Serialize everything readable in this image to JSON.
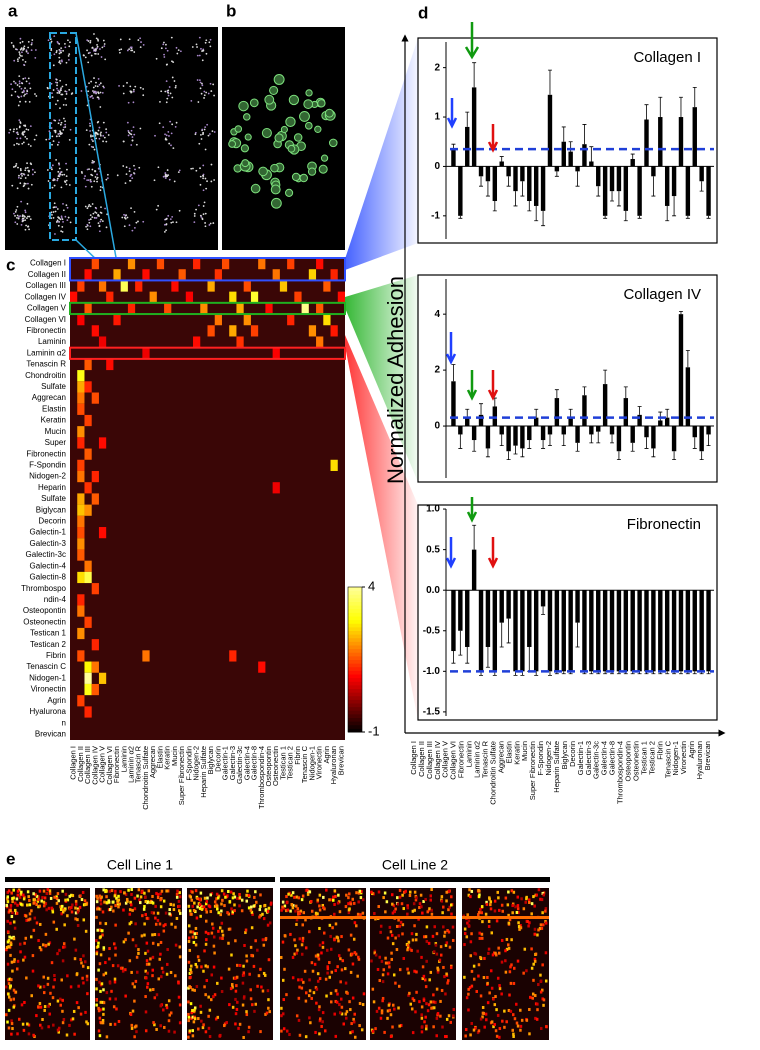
{
  "figure": {
    "panel_labels": [
      "a",
      "b",
      "c",
      "d",
      "e"
    ],
    "adhesion_label": "Normalized Adhesion",
    "cell_lines": [
      "Cell Line 1",
      "Cell Line 2"
    ]
  },
  "chart_data": [
    {
      "type": "heatmap",
      "row_labels": [
        "Collagen I",
        "Collagen II",
        "Collagen III",
        "Collagen IV",
        "Collagen V",
        "Collagen VI",
        "Fibronectin",
        "Laminin",
        "Laminin α2",
        "Tenascin R",
        "Chondroitin",
        "Sulfate",
        "Aggrecan",
        "Elastin",
        "Keratin",
        "Mucin",
        "Super",
        "Fibronectin",
        "F-Spondin",
        "Nidogen-2",
        "Heparin",
        "Sulfate",
        "Biglycan",
        "Decorin",
        "Galectin-1",
        "Galectin-3",
        "Galectin-3c",
        "Galectin-4",
        "Galectin-8",
        "Thrombospo",
        "ndin-4",
        "Osteopontin",
        "Osteonectin",
        "Testican 1",
        "Testican 2",
        "Fibrin",
        "Tenascin C",
        "Nidogen-1",
        "Vironectin",
        "Agrin",
        "Hyalurona",
        "n",
        "Brevican"
      ],
      "categories": [
        "Collagen I",
        "Collagen II",
        "Collagen III",
        "Collagen IV",
        "Collagen V",
        "Collagen VI",
        "Fibronectin",
        "Laminin",
        "Laminin α2",
        "Tenascin R",
        "Chondroitin Sulfate",
        "Aggrecan",
        "Elastin",
        "Keratin",
        "Mucin",
        "Super Fibronectin",
        "F-Spondin",
        "Nidogen-2",
        "Heparin Sulfate",
        "Biglycan",
        "Decorin",
        "Galectin-1",
        "Galectin-3",
        "Galectin-3c",
        "Galectin-4",
        "Galectin-8",
        "Thrombospondin-4",
        "Osteopontin",
        "Osteonectin",
        "Testican 1",
        "Testican 2",
        "Fibrin",
        "Tenascin C",
        "Nidogen-1",
        "Vironectin",
        "Agrin",
        "Hyaluronan",
        "Brevican"
      ],
      "clim": [
        -1,
        4
      ],
      "cticks": [
        4,
        -1
      ],
      "cells": [
        [
          0,
          3,
          1.5
        ],
        [
          0,
          8,
          2.0
        ],
        [
          0,
          12,
          1.5
        ],
        [
          0,
          17,
          1.2
        ],
        [
          0,
          21,
          1.5
        ],
        [
          0,
          26,
          1.8
        ],
        [
          0,
          30,
          1.4
        ],
        [
          0,
          34,
          1.0
        ],
        [
          1,
          2,
          1.0
        ],
        [
          1,
          6,
          2.2
        ],
        [
          1,
          10,
          1.0
        ],
        [
          1,
          15,
          1.6
        ],
        [
          1,
          20,
          1.3
        ],
        [
          1,
          28,
          1.8
        ],
        [
          1,
          33,
          2.5
        ],
        [
          1,
          36,
          1.2
        ],
        [
          2,
          1,
          1.4
        ],
        [
          2,
          4,
          1.8
        ],
        [
          2,
          7,
          3.5
        ],
        [
          2,
          9,
          1.2
        ],
        [
          2,
          14,
          1.0
        ],
        [
          2,
          19,
          2.2
        ],
        [
          2,
          24,
          1.5
        ],
        [
          2,
          29,
          2.4
        ],
        [
          2,
          35,
          1.6
        ],
        [
          3,
          0,
          1.0
        ],
        [
          3,
          5,
          1.2
        ],
        [
          3,
          11,
          2.0
        ],
        [
          3,
          16,
          0.9
        ],
        [
          3,
          22,
          2.6
        ],
        [
          3,
          25,
          3.2
        ],
        [
          3,
          31,
          1.4
        ],
        [
          3,
          37,
          1.0
        ],
        [
          4,
          2,
          1.6
        ],
        [
          4,
          8,
          1.2
        ],
        [
          4,
          13,
          1.5
        ],
        [
          4,
          18,
          2.0
        ],
        [
          4,
          23,
          2.2
        ],
        [
          4,
          27,
          1.0
        ],
        [
          4,
          32,
          3.9
        ],
        [
          4,
          34,
          1.6
        ],
        [
          5,
          1,
          0.9
        ],
        [
          5,
          6,
          1.1
        ],
        [
          5,
          20,
          1.8
        ],
        [
          5,
          24,
          2.0
        ],
        [
          5,
          30,
          1.2
        ],
        [
          5,
          35,
          2.6
        ],
        [
          6,
          3,
          1.0
        ],
        [
          6,
          19,
          1.5
        ],
        [
          6,
          22,
          2.2
        ],
        [
          6,
          25,
          1.4
        ],
        [
          6,
          33,
          2.0
        ],
        [
          6,
          36,
          1.1
        ],
        [
          7,
          4,
          0.8
        ],
        [
          7,
          17,
          1.0
        ],
        [
          7,
          23,
          1.3
        ],
        [
          7,
          34,
          1.8
        ],
        [
          8,
          10,
          0.8
        ],
        [
          8,
          28,
          0.9
        ],
        [
          9,
          2,
          1.6
        ],
        [
          9,
          5,
          1.0
        ],
        [
          10,
          1,
          3.0
        ],
        [
          11,
          1,
          2.2
        ],
        [
          11,
          2,
          1.2
        ],
        [
          12,
          1,
          1.8
        ],
        [
          12,
          3,
          1.5
        ],
        [
          13,
          1,
          1.5
        ],
        [
          14,
          2,
          1.4
        ],
        [
          15,
          1,
          2.0
        ],
        [
          16,
          1,
          1.2
        ],
        [
          16,
          4,
          1.0
        ],
        [
          17,
          2,
          1.6
        ],
        [
          18,
          1,
          1.4
        ],
        [
          19,
          1,
          1.8
        ],
        [
          19,
          3,
          1.2
        ],
        [
          20,
          2,
          1.3
        ],
        [
          21,
          1,
          2.2
        ],
        [
          21,
          3,
          1.6
        ],
        [
          22,
          1,
          2.4
        ],
        [
          22,
          2,
          2.0
        ],
        [
          23,
          1,
          1.8
        ],
        [
          24,
          1,
          1.5
        ],
        [
          24,
          4,
          1.0
        ],
        [
          25,
          1,
          2.0
        ],
        [
          26,
          1,
          1.6
        ],
        [
          27,
          2,
          1.8
        ],
        [
          28,
          1,
          2.6
        ],
        [
          28,
          2,
          3.4
        ],
        [
          29,
          3,
          1.4
        ],
        [
          30,
          1,
          1.2
        ],
        [
          31,
          1,
          1.8
        ],
        [
          32,
          2,
          1.4
        ],
        [
          33,
          1,
          2.0
        ],
        [
          34,
          3,
          1.2
        ],
        [
          35,
          1,
          1.5
        ],
        [
          36,
          2,
          2.8
        ],
        [
          36,
          3,
          1.8
        ],
        [
          37,
          2,
          4.0
        ],
        [
          37,
          4,
          2.4
        ],
        [
          38,
          2,
          3.0
        ],
        [
          38,
          3,
          1.6
        ],
        [
          39,
          1,
          1.4
        ],
        [
          40,
          2,
          1.2
        ],
        [
          18,
          36,
          2.6
        ],
        [
          35,
          10,
          1.8
        ],
        [
          35,
          22,
          1.2
        ],
        [
          36,
          26,
          1.0
        ],
        [
          20,
          28,
          0.8
        ]
      ]
    },
    {
      "type": "bar",
      "title": "Collagen I",
      "title_color": "#1a1ad0",
      "color": "#000000",
      "categories": [
        "Collagen I",
        "Collagen II",
        "Collagen III",
        "Collagen IV",
        "Collagen V",
        "Collagen VI",
        "Fibronectin",
        "Laminin",
        "Laminin α2",
        "Tenascin R",
        "Chondroitin Sulfate",
        "Aggrecan",
        "Elastin",
        "Keratin",
        "Mucin",
        "Super Fibronectin",
        "F-Spondin",
        "Nidogen-2",
        "Heparin Sulfate",
        "Biglycan",
        "Decorin",
        "Galectin-1",
        "Galectin-3",
        "Galectin-3c",
        "Galectin-4",
        "Galectin-8",
        "Thrombospondin-4",
        "Osteopontin",
        "Osteonectin",
        "Testican 1",
        "Testican 2",
        "Fibrin",
        "Tenascin C",
        "Nidogen-1",
        "Vironectin",
        "Agrin",
        "Hyaluronan",
        "Brevican"
      ],
      "values": [
        0.35,
        -1.0,
        0.8,
        1.6,
        -0.2,
        -0.3,
        -0.7,
        0.1,
        -0.2,
        -0.5,
        -0.3,
        -0.7,
        -0.8,
        -0.9,
        1.45,
        -0.1,
        0.5,
        0.3,
        -0.1,
        0.45,
        0.1,
        -0.4,
        -1.0,
        -0.5,
        -0.5,
        -0.9,
        0.15,
        -1.0,
        0.95,
        -0.2,
        1.0,
        -0.8,
        -0.6,
        1.0,
        -1.0,
        1.2,
        -0.3,
        -1.0
      ],
      "errors": [
        0.1,
        0.05,
        0.3,
        0.5,
        0.2,
        0.3,
        0.2,
        0.1,
        0.2,
        0.3,
        0.3,
        0.2,
        0.3,
        0.3,
        0.5,
        0.1,
        0.3,
        0.2,
        0.3,
        0.4,
        0.3,
        0.2,
        0.05,
        0.2,
        0.3,
        0.2,
        0.1,
        0.05,
        0.3,
        0.4,
        0.4,
        0.3,
        0.4,
        0.4,
        0.05,
        0.4,
        0.2,
        0.05
      ],
      "reference": 0.35,
      "reference_color": "#1f3fd8",
      "ylim": [
        -1.55,
        2.6
      ],
      "yticks": [
        2,
        1,
        0,
        -1
      ]
    },
    {
      "type": "bar",
      "title": "Collagen IV",
      "title_color": "#1a9a1a",
      "color": "#000000",
      "values": [
        1.6,
        -0.3,
        0.3,
        -0.5,
        0.4,
        -0.8,
        0.7,
        -0.3,
        -0.9,
        -0.7,
        -0.8,
        -0.5,
        0.3,
        -0.5,
        -0.3,
        1.0,
        -0.3,
        0.3,
        -0.6,
        1.1,
        -0.3,
        -0.2,
        1.5,
        -0.3,
        -0.9,
        1.0,
        -0.6,
        0.4,
        -0.4,
        -0.8,
        0.2,
        0.3,
        -0.9,
        4.0,
        2.1,
        -0.4,
        -0.9,
        -0.3
      ],
      "errors": [
        0.6,
        0.5,
        0.3,
        0.4,
        0.4,
        0.3,
        0.3,
        0.4,
        0.3,
        0.3,
        0.3,
        0.3,
        0.3,
        0.3,
        0.4,
        0.3,
        0.4,
        0.3,
        0.3,
        0.3,
        0.3,
        0.4,
        0.5,
        0.3,
        0.3,
        0.4,
        0.3,
        0.3,
        0.4,
        0.3,
        0.3,
        0.3,
        0.3,
        0.1,
        0.6,
        0.4,
        0.3,
        0.4
      ],
      "reference": 0.3,
      "reference_color": "#1f3fd8",
      "ylim": [
        -2,
        5.4
      ],
      "yticks": [
        4,
        2,
        0
      ]
    },
    {
      "type": "bar",
      "title": "Fibronectin",
      "title_color": "#e01010",
      "color": "#000000",
      "values": [
        -0.75,
        -0.5,
        -0.7,
        0.5,
        -1.0,
        -0.7,
        -1.0,
        -0.4,
        -0.35,
        -1.0,
        -1.0,
        -0.7,
        -1.0,
        -0.2,
        -1.0,
        -1.0,
        -1.0,
        -1.0,
        -0.4,
        -1.0,
        -1.0,
        -1.0,
        -1.0,
        -1.0,
        -1.0,
        -1.0,
        -1.0,
        -1.0,
        -1.0,
        -1.0,
        -1.0,
        -1.0,
        -1.0,
        -1.0,
        -1.0,
        -1.0,
        -1.0,
        -1.0
      ],
      "errors": [
        0.15,
        0.3,
        0.2,
        0.3,
        0.05,
        0.25,
        0.05,
        0.3,
        0.3,
        0.05,
        0.05,
        0.3,
        0.05,
        0.1,
        0.05,
        0.03,
        0.03,
        0.03,
        0.3,
        0.03,
        0.03,
        0.03,
        0.03,
        0.03,
        0.03,
        0.03,
        0.03,
        0.03,
        0.03,
        0.03,
        0.03,
        0.03,
        0.03,
        0.03,
        0.03,
        0.03,
        0.03,
        0.03
      ],
      "reference": -1.0,
      "reference_color": "#1f3fd8",
      "ylim": [
        -1.6,
        1.05
      ],
      "yticks": [
        {
          "value": 1,
          "label": "1.0"
        },
        {
          "value": 0.5,
          "label": "0.5"
        },
        {
          "value": 0,
          "label": "0.0"
        },
        {
          "value": -0.5,
          "label": "-0.5"
        },
        {
          "value": -1,
          "label": "-1.0"
        },
        {
          "value": -1.5,
          "label": "-1.5"
        }
      ]
    }
  ]
}
